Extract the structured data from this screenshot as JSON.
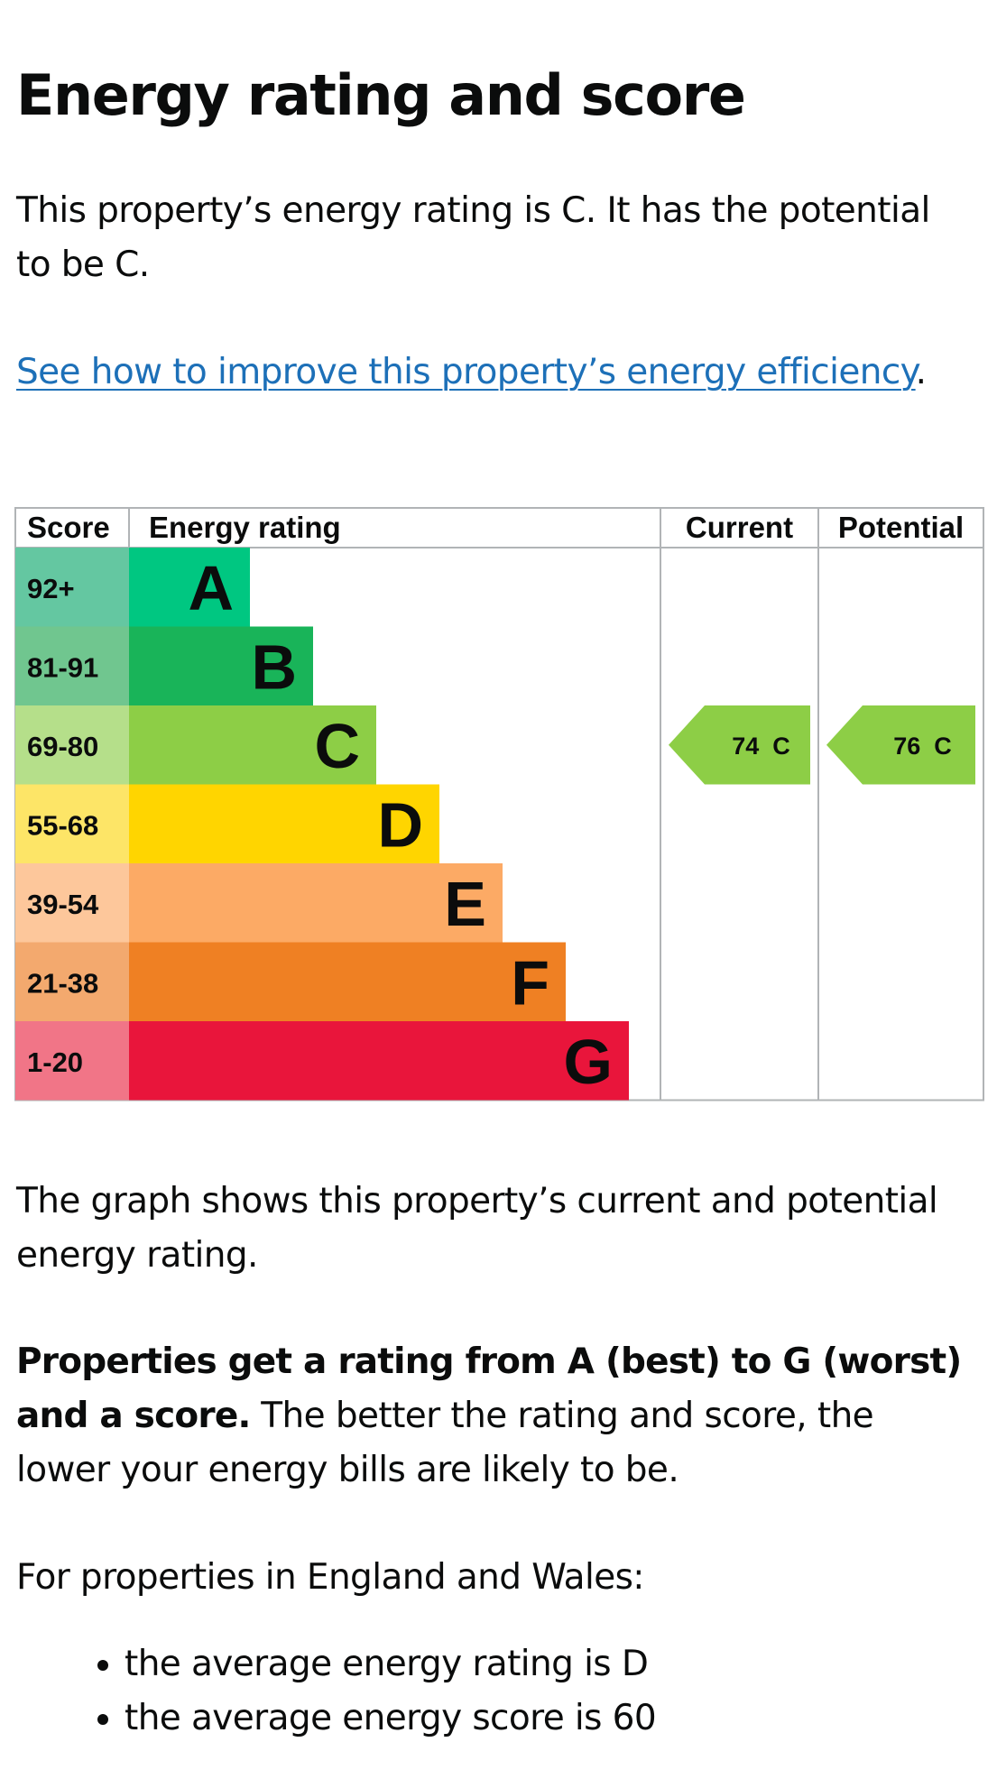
{
  "page": {
    "title": "Energy rating and score",
    "intro": "This property’s energy rating is C. It has the potential to be C.",
    "link_text": "See how to improve this property’s energy efficiency",
    "link_suffix": ".",
    "graph_note": "The graph shows this property’s current and potential energy rating.",
    "rating_bold": "Properties get a rating from A (best) to G (worst) and a score.",
    "rating_rest": " The better the rating and score, the lower your energy bills are likely to be.",
    "region_note": "For properties in England and Wales:",
    "facts": [
      "the average energy rating is D",
      "the average energy score is 60"
    ]
  },
  "chart_data": {
    "type": "bar",
    "headers": {
      "score": "Score",
      "rating": "Energy rating",
      "current": "Current",
      "potential": "Potential"
    },
    "bands": [
      {
        "score": "92+",
        "letter": "A",
        "color": "#00c781",
        "score_color": "#64c7a1"
      },
      {
        "score": "81-91",
        "letter": "B",
        "color": "#19b459",
        "score_color": "#70c68f"
      },
      {
        "score": "69-80",
        "letter": "C",
        "color": "#8dce46",
        "score_color": "#b5df8a"
      },
      {
        "score": "55-68",
        "letter": "D",
        "color": "#ffd500",
        "score_color": "#fde567"
      },
      {
        "score": "39-54",
        "letter": "E",
        "color": "#fcaa65",
        "score_color": "#fdc79b"
      },
      {
        "score": "21-38",
        "letter": "F",
        "color": "#ef8023",
        "score_color": "#f3a96e"
      },
      {
        "score": "1-20",
        "letter": "G",
        "color": "#e9153b",
        "score_color": "#f17587"
      }
    ],
    "current": {
      "score": 74,
      "letter": "C",
      "label": "74  C",
      "color": "#8dce46"
    },
    "potential": {
      "score": 76,
      "letter": "C",
      "label": "76  C",
      "color": "#8dce46"
    }
  }
}
